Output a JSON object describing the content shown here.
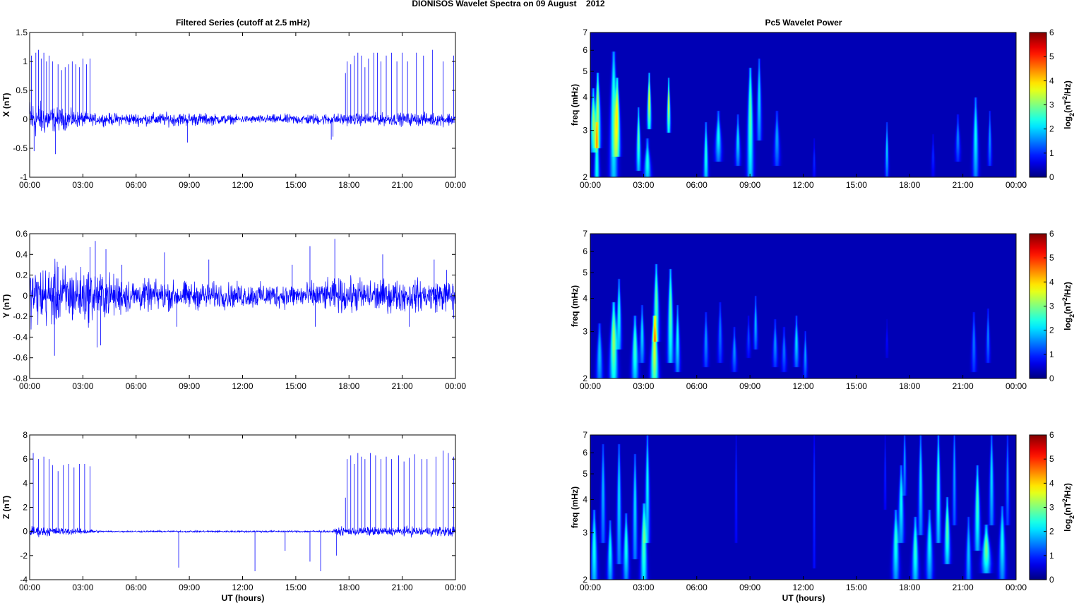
{
  "page": {
    "title": "DIONISOS Wavelet Spectra on 09 August    2012",
    "left_title": "Filtered Series (cutoff at 2.5 mHz)",
    "right_title": "Pc5 Wavelet Power",
    "xlabel": "UT (hours)"
  },
  "colors": {
    "trace": "#0000ff",
    "background": "#00008f"
  },
  "chart_data": [
    {
      "type": "line",
      "ylabel": "X (nT)",
      "ylim": [
        -1,
        1.5
      ],
      "yticks": [
        -1,
        -0.5,
        0,
        0.5,
        1,
        1.5
      ],
      "xlim": [
        0,
        24
      ],
      "xticks": [
        "00:00",
        "03:00",
        "06:00",
        "09:00",
        "12:00",
        "15:00",
        "18:00",
        "21:00",
        "00:00"
      ],
      "noise": [
        [
          0,
          0.22
        ],
        [
          1.5,
          0.12
        ],
        [
          3.5,
          0.06
        ],
        [
          9,
          0.07
        ],
        [
          12,
          0.04
        ],
        [
          16.5,
          0.06
        ],
        [
          18,
          0.06
        ],
        [
          24,
          0.07
        ]
      ],
      "spikes": [
        [
          0.1,
          1.1
        ],
        [
          0.25,
          -0.55
        ],
        [
          0.35,
          1.15
        ],
        [
          0.5,
          1.2
        ],
        [
          0.65,
          1.05
        ],
        [
          0.8,
          1.15
        ],
        [
          0.95,
          1.0
        ],
        [
          1.1,
          1.1
        ],
        [
          1.3,
          1.0
        ],
        [
          1.45,
          -0.6
        ],
        [
          1.6,
          0.95
        ],
        [
          1.8,
          0.85
        ],
        [
          2.0,
          0.9
        ],
        [
          2.2,
          0.95
        ],
        [
          2.4,
          1.0
        ],
        [
          2.6,
          0.95
        ],
        [
          2.8,
          0.9
        ],
        [
          3.0,
          1.05
        ],
        [
          3.2,
          0.95
        ],
        [
          3.4,
          1.05
        ],
        [
          8.9,
          -0.4
        ],
        [
          17.0,
          -0.35
        ],
        [
          17.1,
          -0.3
        ],
        [
          17.8,
          0.8
        ],
        [
          17.9,
          1.0
        ],
        [
          18.1,
          0.95
        ],
        [
          18.3,
          1.1
        ],
        [
          18.5,
          1.15
        ],
        [
          18.7,
          1.1
        ],
        [
          18.9,
          0.9
        ],
        [
          19.1,
          1.05
        ],
        [
          19.4,
          1.15
        ],
        [
          19.6,
          1.15
        ],
        [
          19.8,
          1.0
        ],
        [
          20.1,
          1.1
        ],
        [
          20.4,
          1.15
        ],
        [
          20.7,
          1.0
        ],
        [
          21.0,
          1.15
        ],
        [
          21.3,
          1.0
        ],
        [
          21.8,
          1.15
        ],
        [
          22.2,
          1.1
        ],
        [
          22.7,
          1.2
        ],
        [
          23.3,
          1.0
        ],
        [
          23.9,
          1.1
        ]
      ]
    },
    {
      "type": "line",
      "ylabel": "Y (nT)",
      "ylim": [
        -0.8,
        0.6
      ],
      "yticks": [
        -0.8,
        -0.6,
        -0.4,
        -0.2,
        0,
        0.2,
        0.4,
        0.6
      ],
      "xlim": [
        0,
        24
      ],
      "xticks": [
        "00:00",
        "03:00",
        "06:00",
        "09:00",
        "12:00",
        "15:00",
        "18:00",
        "21:00",
        "00:00"
      ],
      "noise": [
        [
          0,
          0.16
        ],
        [
          1.5,
          0.18
        ],
        [
          3.5,
          0.15
        ],
        [
          6,
          0.09
        ],
        [
          9,
          0.08
        ],
        [
          12,
          0.07
        ],
        [
          15,
          0.07
        ],
        [
          18,
          0.1
        ],
        [
          21,
          0.09
        ],
        [
          24,
          0.09
        ]
      ],
      "spikes": [
        [
          1.4,
          -0.58
        ],
        [
          1.6,
          0.28
        ],
        [
          3.4,
          0.47
        ],
        [
          3.7,
          0.53
        ],
        [
          3.8,
          -0.5
        ],
        [
          4.0,
          -0.48
        ],
        [
          4.3,
          0.45
        ],
        [
          5.2,
          0.3
        ],
        [
          7.6,
          0.42
        ],
        [
          8.3,
          -0.3
        ],
        [
          10.1,
          0.35
        ],
        [
          14.8,
          0.3
        ],
        [
          15.8,
          0.48
        ],
        [
          16.1,
          -0.3
        ],
        [
          17.2,
          0.55
        ],
        [
          19.9,
          0.4
        ],
        [
          21.4,
          -0.3
        ],
        [
          22.8,
          0.35
        ],
        [
          23.5,
          0.25
        ],
        [
          23.9,
          -0.22
        ]
      ]
    },
    {
      "type": "line",
      "ylabel": "Z (nT)",
      "xlabel": "UT (hours)",
      "ylim": [
        -4,
        8
      ],
      "yticks": [
        -4,
        -2,
        0,
        2,
        4,
        6,
        8
      ],
      "xlim": [
        0,
        24
      ],
      "xticks": [
        "00:00",
        "03:00",
        "06:00",
        "09:00",
        "12:00",
        "15:00",
        "18:00",
        "21:00",
        "00:00"
      ],
      "noise": [
        [
          0,
          0.28
        ],
        [
          1.5,
          0.2
        ],
        [
          3.5,
          0.12
        ],
        [
          4.0,
          0.04
        ],
        [
          17.0,
          0.05
        ],
        [
          17.5,
          0.2
        ],
        [
          20,
          0.22
        ],
        [
          24,
          0.25
        ]
      ],
      "spikes": [
        [
          0.2,
          6.5
        ],
        [
          0.5,
          6.0
        ],
        [
          0.8,
          6.2
        ],
        [
          1.1,
          6.0
        ],
        [
          1.3,
          5.5
        ],
        [
          1.6,
          5.0
        ],
        [
          1.9,
          5.5
        ],
        [
          2.2,
          5.6
        ],
        [
          2.5,
          5.3
        ],
        [
          2.8,
          5.6
        ],
        [
          3.1,
          5.6
        ],
        [
          3.4,
          5.4
        ],
        [
          8.4,
          -3.0
        ],
        [
          12.7,
          -3.3
        ],
        [
          14.4,
          -1.6
        ],
        [
          15.8,
          -2.5
        ],
        [
          16.4,
          -3.3
        ],
        [
          17.3,
          -2.0
        ],
        [
          17.8,
          2.8
        ],
        [
          17.9,
          6.0
        ],
        [
          18.1,
          6.3
        ],
        [
          18.3,
          5.6
        ],
        [
          18.5,
          6.5
        ],
        [
          18.7,
          6.2
        ],
        [
          18.9,
          6.0
        ],
        [
          19.2,
          6.5
        ],
        [
          19.5,
          6.3
        ],
        [
          19.8,
          6.0
        ],
        [
          20.1,
          6.2
        ],
        [
          20.4,
          6.0
        ],
        [
          20.8,
          6.3
        ],
        [
          21.1,
          5.8
        ],
        [
          21.4,
          6.1
        ],
        [
          21.7,
          6.4
        ],
        [
          22.1,
          6.0
        ],
        [
          22.4,
          6.0
        ],
        [
          22.9,
          6.2
        ],
        [
          23.3,
          6.7
        ],
        [
          23.6,
          6.5
        ],
        [
          23.9,
          6.2
        ]
      ]
    },
    {
      "type": "heatmap",
      "ylabel": "freq (mHz)",
      "yscale": "log",
      "ylim": [
        2,
        7
      ],
      "yticks": [
        2,
        3,
        4,
        5,
        6,
        7
      ],
      "xlim": [
        0,
        24
      ],
      "xticks": [
        "00:00",
        "03:00",
        "06:00",
        "09:00",
        "12:00",
        "15:00",
        "18:00",
        "21:00",
        "00:00"
      ],
      "colorbar": {
        "label": "log2(nT^2/Hz)",
        "ticks": [
          0,
          1,
          2,
          3,
          4,
          5,
          6
        ],
        "range": [
          0,
          6
        ],
        "colormap": "jet"
      },
      "blobs": [
        [
          0.15,
          3.0,
          0.12,
          2.7,
          4.0
        ],
        [
          0.35,
          2.3,
          0.13,
          1.6,
          3.0
        ],
        [
          0.4,
          3.3,
          0.12,
          2.8,
          4.6
        ],
        [
          1.3,
          2.5,
          0.16,
          2.0,
          5.5
        ],
        [
          1.5,
          3.3,
          0.12,
          2.6,
          4.4
        ],
        [
          2.7,
          2.8,
          0.09,
          2.3,
          3.4
        ],
        [
          3.2,
          2.3,
          0.15,
          2.0,
          2.6
        ],
        [
          3.3,
          3.8,
          0.08,
          3.3,
          4.6
        ],
        [
          4.4,
          3.7,
          0.07,
          3.2,
          4.4
        ],
        [
          6.5,
          2.4,
          0.1,
          2.0,
          3.0
        ],
        [
          7.2,
          2.2,
          0.13,
          2.5,
          3.3
        ],
        [
          8.3,
          2.0,
          0.1,
          2.4,
          3.2
        ],
        [
          9.0,
          2.8,
          0.13,
          2.2,
          4.8
        ],
        [
          9.5,
          2.0,
          0.1,
          3.0,
          5.2
        ],
        [
          10.5,
          1.6,
          0.12,
          2.4,
          3.3
        ],
        [
          12.6,
          0.8,
          0.06,
          2.1,
          2.6
        ],
        [
          16.7,
          2.0,
          0.07,
          2.2,
          3.0
        ],
        [
          19.3,
          0.8,
          0.07,
          2.2,
          2.7
        ],
        [
          20.7,
          1.4,
          0.1,
          2.5,
          3.2
        ],
        [
          21.7,
          2.2,
          0.12,
          2.2,
          3.7
        ],
        [
          22.5,
          1.5,
          0.08,
          2.4,
          3.3
        ],
        [
          24.0,
          1.6,
          0.05,
          2.0,
          4.5
        ]
      ]
    },
    {
      "type": "heatmap",
      "ylabel": "freq (mHz)",
      "yscale": "log",
      "ylim": [
        2,
        7
      ],
      "yticks": [
        2,
        3,
        4,
        5,
        6,
        7
      ],
      "xlim": [
        0,
        24
      ],
      "xticks": [
        "00:00",
        "03:00",
        "06:00",
        "09:00",
        "12:00",
        "15:00",
        "18:00",
        "21:00",
        "00:00"
      ],
      "colorbar": {
        "label": "log2(nT^2/Hz)",
        "ticks": [
          0,
          1,
          2,
          3,
          4,
          5,
          6
        ],
        "range": [
          0,
          6
        ],
        "colormap": "jet"
      },
      "blobs": [
        [
          0.5,
          1.8,
          0.14,
          2.0,
          3.0
        ],
        [
          1.3,
          3.2,
          0.16,
          2.1,
          3.6
        ],
        [
          1.6,
          2.4,
          0.1,
          2.8,
          4.4
        ],
        [
          2.5,
          2.6,
          0.14,
          2.1,
          3.2
        ],
        [
          2.9,
          2.0,
          0.1,
          2.5,
          3.5
        ],
        [
          3.6,
          3.6,
          0.16,
          2.0,
          3.2
        ],
        [
          3.7,
          2.8,
          0.12,
          3.0,
          5.0
        ],
        [
          4.5,
          2.8,
          0.12,
          2.5,
          4.8
        ],
        [
          4.9,
          2.2,
          0.1,
          2.3,
          3.5
        ],
        [
          6.5,
          1.5,
          0.1,
          2.4,
          3.3
        ],
        [
          7.3,
          1.3,
          0.1,
          2.5,
          3.6
        ],
        [
          8.1,
          1.5,
          0.1,
          2.3,
          2.9
        ],
        [
          8.9,
          1.0,
          0.08,
          2.6,
          3.2
        ],
        [
          9.3,
          1.8,
          0.08,
          2.8,
          3.8
        ],
        [
          10.4,
          1.5,
          0.1,
          2.4,
          3.1
        ],
        [
          10.9,
          1.3,
          0.1,
          2.3,
          2.9
        ],
        [
          11.6,
          2.0,
          0.1,
          2.4,
          3.2
        ],
        [
          12.1,
          1.6,
          0.08,
          2.2,
          2.8
        ],
        [
          16.7,
          0.6,
          0.05,
          2.6,
          3.1
        ],
        [
          21.6,
          1.3,
          0.1,
          2.3,
          3.3
        ],
        [
          22.4,
          1.4,
          0.08,
          2.5,
          3.4
        ]
      ]
    },
    {
      "type": "heatmap",
      "ylabel": "freq (mHz)",
      "yscale": "log",
      "ylim": [
        2,
        7
      ],
      "yticks": [
        2,
        3,
        4,
        5,
        6,
        7
      ],
      "xlim": [
        0,
        24
      ],
      "xticks": [
        "00:00",
        "03:00",
        "06:00",
        "09:00",
        "12:00",
        "15:00",
        "18:00",
        "21:00",
        "00:00"
      ],
      "xlabel": "UT (hours)",
      "colorbar": {
        "label": "log2(nT^2/Hz)",
        "ticks": [
          0,
          1,
          2,
          3,
          4,
          5,
          6
        ],
        "range": [
          0,
          6
        ],
        "colormap": "jet"
      },
      "blobs": [
        [
          0.2,
          2.3,
          0.14,
          2.0,
          3.4
        ],
        [
          0.7,
          1.7,
          0.1,
          3.0,
          6.0
        ],
        [
          1.1,
          2.2,
          0.12,
          2.1,
          3.1
        ],
        [
          1.6,
          2.0,
          0.1,
          2.5,
          6.0
        ],
        [
          2.0,
          2.4,
          0.12,
          2.2,
          3.3
        ],
        [
          2.5,
          2.0,
          0.1,
          2.6,
          5.5
        ],
        [
          3.0,
          2.7,
          0.14,
          2.0,
          3.6
        ],
        [
          3.2,
          2.2,
          0.1,
          3.0,
          6.5
        ],
        [
          8.2,
          0.8,
          0.05,
          3.0,
          6.5
        ],
        [
          12.6,
          0.9,
          0.05,
          2.4,
          6.8
        ],
        [
          16.6,
          0.8,
          0.05,
          4.0,
          6.5
        ],
        [
          17.2,
          2.4,
          0.14,
          2.2,
          3.4
        ],
        [
          17.5,
          2.2,
          0.12,
          3.0,
          5.0
        ],
        [
          17.7,
          1.6,
          0.07,
          4.5,
          7.0
        ],
        [
          18.3,
          2.5,
          0.14,
          2.1,
          3.2
        ],
        [
          18.6,
          2.0,
          0.1,
          3.2,
          6.5
        ],
        [
          19.1,
          2.2,
          0.14,
          2.2,
          3.4
        ],
        [
          19.6,
          2.5,
          0.1,
          3.0,
          6.5
        ],
        [
          20.1,
          2.8,
          0.12,
          2.5,
          3.8
        ],
        [
          20.5,
          1.6,
          0.08,
          3.5,
          7.0
        ],
        [
          21.3,
          1.8,
          0.12,
          2.0,
          3.2
        ],
        [
          21.8,
          2.6,
          0.12,
          2.8,
          5.0
        ],
        [
          22.3,
          3.0,
          0.18,
          2.3,
          3.0
        ],
        [
          22.6,
          2.0,
          0.1,
          3.5,
          6.5
        ],
        [
          23.2,
          2.2,
          0.14,
          2.2,
          3.5
        ],
        [
          23.5,
          1.4,
          0.08,
          3.5,
          6.5
        ]
      ]
    }
  ]
}
